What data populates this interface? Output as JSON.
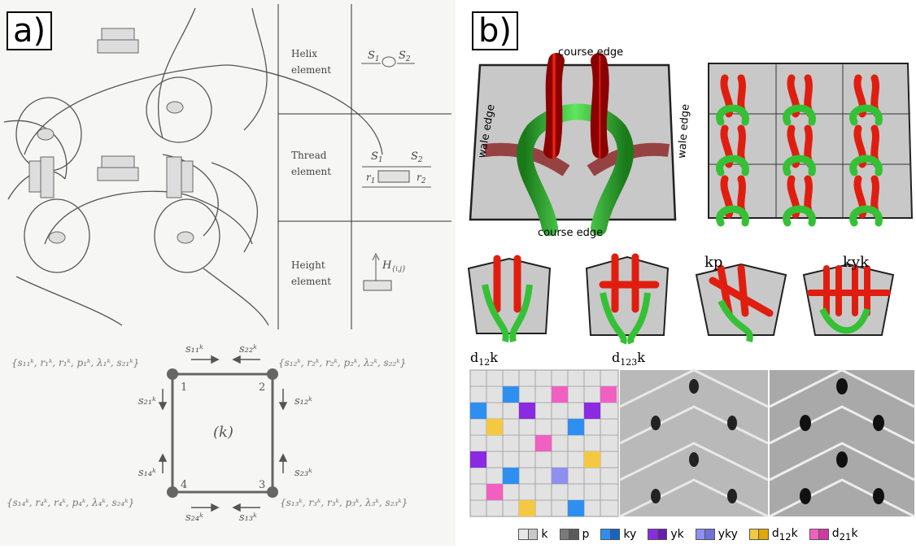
{
  "panel_a": {
    "label": "a)",
    "table": [
      {
        "name": "Helix",
        "name2": "element",
        "s1": "S",
        "s1sub": "1",
        "s2": "S",
        "s2sub": "2"
      },
      {
        "name": "Thread",
        "name2": "element",
        "s1": "S",
        "s1sub": "1",
        "s2": "S",
        "s2sub": "2",
        "r1": "r",
        "r1sub": "1",
        "r2": "r",
        "r2sub": "2"
      },
      {
        "name": "Height",
        "name2": "element",
        "h": "H",
        "hsub": "{i,j}"
      }
    ],
    "center": "(k)",
    "nodes": [
      "1",
      "2",
      "3",
      "4"
    ],
    "edges": {
      "s11": "s₁₁ᵏ",
      "s22": "s₂₂ᵏ",
      "s21": "s₂₁ᵏ",
      "s12": "s₁₂ᵏ",
      "s14": "s₁₄ᵏ",
      "s23": "s₂₃ᵏ",
      "s24": "s₂₄ᵏ",
      "s13": "s₁₃ᵏ"
    },
    "sets": {
      "n1": "{s₁₁ᵏ, r₁ᵏ, r₁ᵏ, p₁ᵏ, λ₁ᵏ, s₂₁ᵏ}",
      "n2": "{s₁₂ᵏ, r₂ᵏ, r₂ᵏ, p₂ᵏ, λ₂ᵏ, s₂₂ᵏ}",
      "n4": "{s₁₄ᵏ, r₄ᵏ, r₄ᵏ, p₄ᵏ, λ₄ᵏ, s₂₄ᵏ}",
      "n3": "{s₁₃ᵏ, r₃ᵏ, r₃ᵏ, p₃ᵏ, λ₃ᵏ, s₂₃ᵏ}"
    }
  },
  "panel_b": {
    "label": "b)",
    "course_edge_top": "course edge",
    "course_edge_bottom": "course edge",
    "wale_edge_left": "wale edge",
    "wale_edge_right": "wale edge",
    "stitch_labels": [
      {
        "main": "d",
        "sub": "12",
        "tail": "k"
      },
      {
        "main": "d",
        "sub": "123",
        "tail": "k"
      },
      {
        "main": "kp",
        "sub": "",
        "tail": ""
      },
      {
        "main": "kyk",
        "sub": "",
        "tail": ""
      }
    ],
    "legend": [
      {
        "label": "k",
        "sub": "",
        "tail": "",
        "colors": [
          "#e6e6e6",
          "#c8c8c8"
        ]
      },
      {
        "label": "p",
        "sub": "",
        "tail": "",
        "colors": [
          "#7a7a7a",
          "#5a5a5a"
        ]
      },
      {
        "label": "ky",
        "sub": "",
        "tail": "",
        "colors": [
          "#2f8ff0",
          "#1565c0"
        ]
      },
      {
        "label": "yk",
        "sub": "",
        "tail": "",
        "colors": [
          "#8a2be2",
          "#6a1bb0"
        ]
      },
      {
        "label": "yky",
        "sub": "",
        "tail": "",
        "colors": [
          "#8f8ff0",
          "#7070d8"
        ]
      },
      {
        "label": "d",
        "sub": "12",
        "tail": "k",
        "colors": [
          "#f5c842",
          "#e0a800"
        ]
      },
      {
        "label": "d",
        "sub": "21",
        "tail": "k",
        "colors": [
          "#f060c0",
          "#d03aa0"
        ]
      }
    ]
  }
}
